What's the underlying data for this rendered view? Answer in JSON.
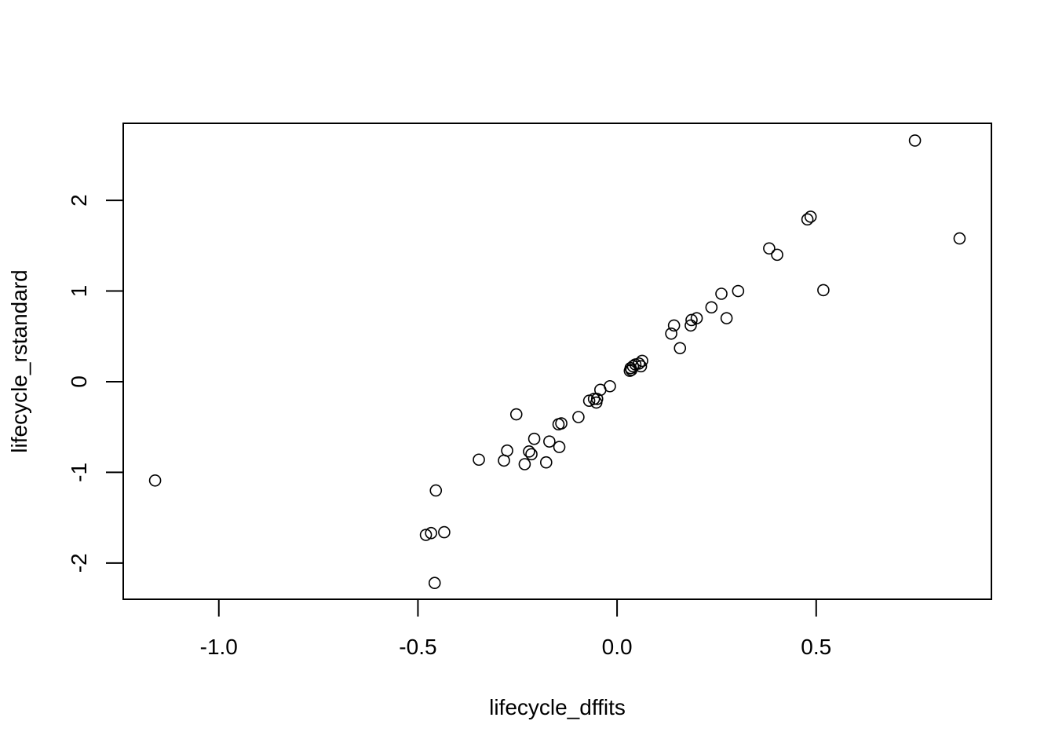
{
  "chart_data": {
    "type": "scatter",
    "title": "",
    "xlabel": "lifecycle_dffits",
    "ylabel": "lifecycle_rstandard",
    "xlim": [
      -1.24,
      0.94
    ],
    "ylim": [
      -2.4,
      2.85
    ],
    "x_ticks": [
      -1.0,
      -0.5,
      0.0,
      0.5
    ],
    "x_tick_labels": [
      "-1.0",
      "-0.5",
      "0.0",
      "0.5"
    ],
    "y_ticks": [
      -2,
      -1,
      0,
      1,
      2
    ],
    "y_tick_labels": [
      "-2",
      "-1",
      "0",
      "1",
      "2"
    ],
    "grid": false,
    "marker": "open-circle",
    "points": [
      {
        "x": -1.16,
        "y": -1.09
      },
      {
        "x": -0.48,
        "y": -1.69
      },
      {
        "x": -0.467,
        "y": -1.67
      },
      {
        "x": -0.455,
        "y": -1.2
      },
      {
        "x": -0.458,
        "y": -2.22
      },
      {
        "x": -0.434,
        "y": -1.66
      },
      {
        "x": -0.347,
        "y": -0.86
      },
      {
        "x": -0.284,
        "y": -0.87
      },
      {
        "x": -0.276,
        "y": -0.76
      },
      {
        "x": -0.253,
        "y": -0.36
      },
      {
        "x": -0.232,
        "y": -0.91
      },
      {
        "x": -0.221,
        "y": -0.77
      },
      {
        "x": -0.215,
        "y": -0.8
      },
      {
        "x": -0.208,
        "y": -0.63
      },
      {
        "x": -0.178,
        "y": -0.89
      },
      {
        "x": -0.17,
        "y": -0.66
      },
      {
        "x": -0.147,
        "y": -0.47
      },
      {
        "x": -0.145,
        "y": -0.72
      },
      {
        "x": -0.14,
        "y": -0.46
      },
      {
        "x": -0.097,
        "y": -0.39
      },
      {
        "x": -0.07,
        "y": -0.21
      },
      {
        "x": -0.058,
        "y": -0.19
      },
      {
        "x": -0.052,
        "y": -0.23
      },
      {
        "x": -0.05,
        "y": -0.19
      },
      {
        "x": -0.042,
        "y": -0.09
      },
      {
        "x": -0.018,
        "y": -0.05
      },
      {
        "x": 0.032,
        "y": 0.12
      },
      {
        "x": 0.034,
        "y": 0.15
      },
      {
        "x": 0.036,
        "y": 0.13
      },
      {
        "x": 0.04,
        "y": 0.17
      },
      {
        "x": 0.046,
        "y": 0.19
      },
      {
        "x": 0.055,
        "y": 0.2
      },
      {
        "x": 0.06,
        "y": 0.17
      },
      {
        "x": 0.063,
        "y": 0.23
      },
      {
        "x": 0.136,
        "y": 0.53
      },
      {
        "x": 0.143,
        "y": 0.62
      },
      {
        "x": 0.158,
        "y": 0.37
      },
      {
        "x": 0.185,
        "y": 0.62
      },
      {
        "x": 0.187,
        "y": 0.68
      },
      {
        "x": 0.2,
        "y": 0.7
      },
      {
        "x": 0.237,
        "y": 0.82
      },
      {
        "x": 0.262,
        "y": 0.97
      },
      {
        "x": 0.275,
        "y": 0.7
      },
      {
        "x": 0.304,
        "y": 1.0
      },
      {
        "x": 0.382,
        "y": 1.47
      },
      {
        "x": 0.402,
        "y": 1.4
      },
      {
        "x": 0.478,
        "y": 1.79
      },
      {
        "x": 0.486,
        "y": 1.82
      },
      {
        "x": 0.518,
        "y": 1.01
      },
      {
        "x": 0.748,
        "y": 2.66
      },
      {
        "x": 0.86,
        "y": 1.58
      }
    ]
  }
}
